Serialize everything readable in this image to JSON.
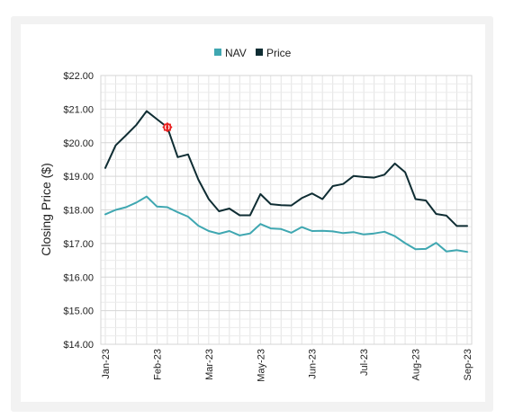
{
  "chart_data": {
    "type": "line",
    "ylabel": "Closing Price ($)",
    "ylim": [
      14,
      22
    ],
    "y_ticks": [
      "$22.00",
      "$21.00",
      "$20.00",
      "$19.00",
      "$18.00",
      "$17.00",
      "$16.00",
      "$15.00",
      "$14.00"
    ],
    "y_tick_values": [
      22,
      21,
      20,
      19,
      18,
      17,
      16,
      15,
      14
    ],
    "x_ticks": [
      "Jan-23",
      "Feb-23",
      "Mar-23",
      "May-23",
      "Jun-23",
      "Jul-23",
      "Aug-23",
      "Sep-23"
    ],
    "x_tick_index": [
      0,
      5,
      10,
      15,
      20,
      25,
      30,
      35
    ],
    "x_point_count": 36,
    "grid": true,
    "legend_position": "top-center",
    "series": [
      {
        "name": "NAV",
        "color": "#3fa7b1",
        "values": [
          17.87,
          18.0,
          18.08,
          18.22,
          18.4,
          18.1,
          18.08,
          17.93,
          17.8,
          17.53,
          17.37,
          17.29,
          17.37,
          17.24,
          17.3,
          17.58,
          17.45,
          17.43,
          17.32,
          17.49,
          17.37,
          17.38,
          17.36,
          17.31,
          17.34,
          17.27,
          17.3,
          17.35,
          17.22,
          17.01,
          16.83,
          16.84,
          17.02,
          16.76,
          16.8,
          16.75
        ]
      },
      {
        "name": "Price",
        "color": "#0f2d33",
        "values": [
          19.25,
          19.92,
          20.22,
          20.53,
          20.94,
          20.7,
          20.46,
          19.57,
          19.65,
          18.9,
          18.32,
          17.96,
          18.04,
          17.84,
          17.84,
          18.47,
          18.17,
          18.14,
          18.13,
          18.35,
          18.49,
          18.32,
          18.71,
          18.77,
          19.01,
          18.98,
          18.96,
          19.05,
          19.38,
          19.12,
          18.32,
          18.28,
          17.88,
          17.83,
          17.52,
          17.52
        ]
      }
    ],
    "annotations": [
      {
        "type": "marker",
        "series": "Price",
        "index": 6,
        "icon": "red-seal-icon",
        "color": "#e8201f"
      }
    ]
  }
}
